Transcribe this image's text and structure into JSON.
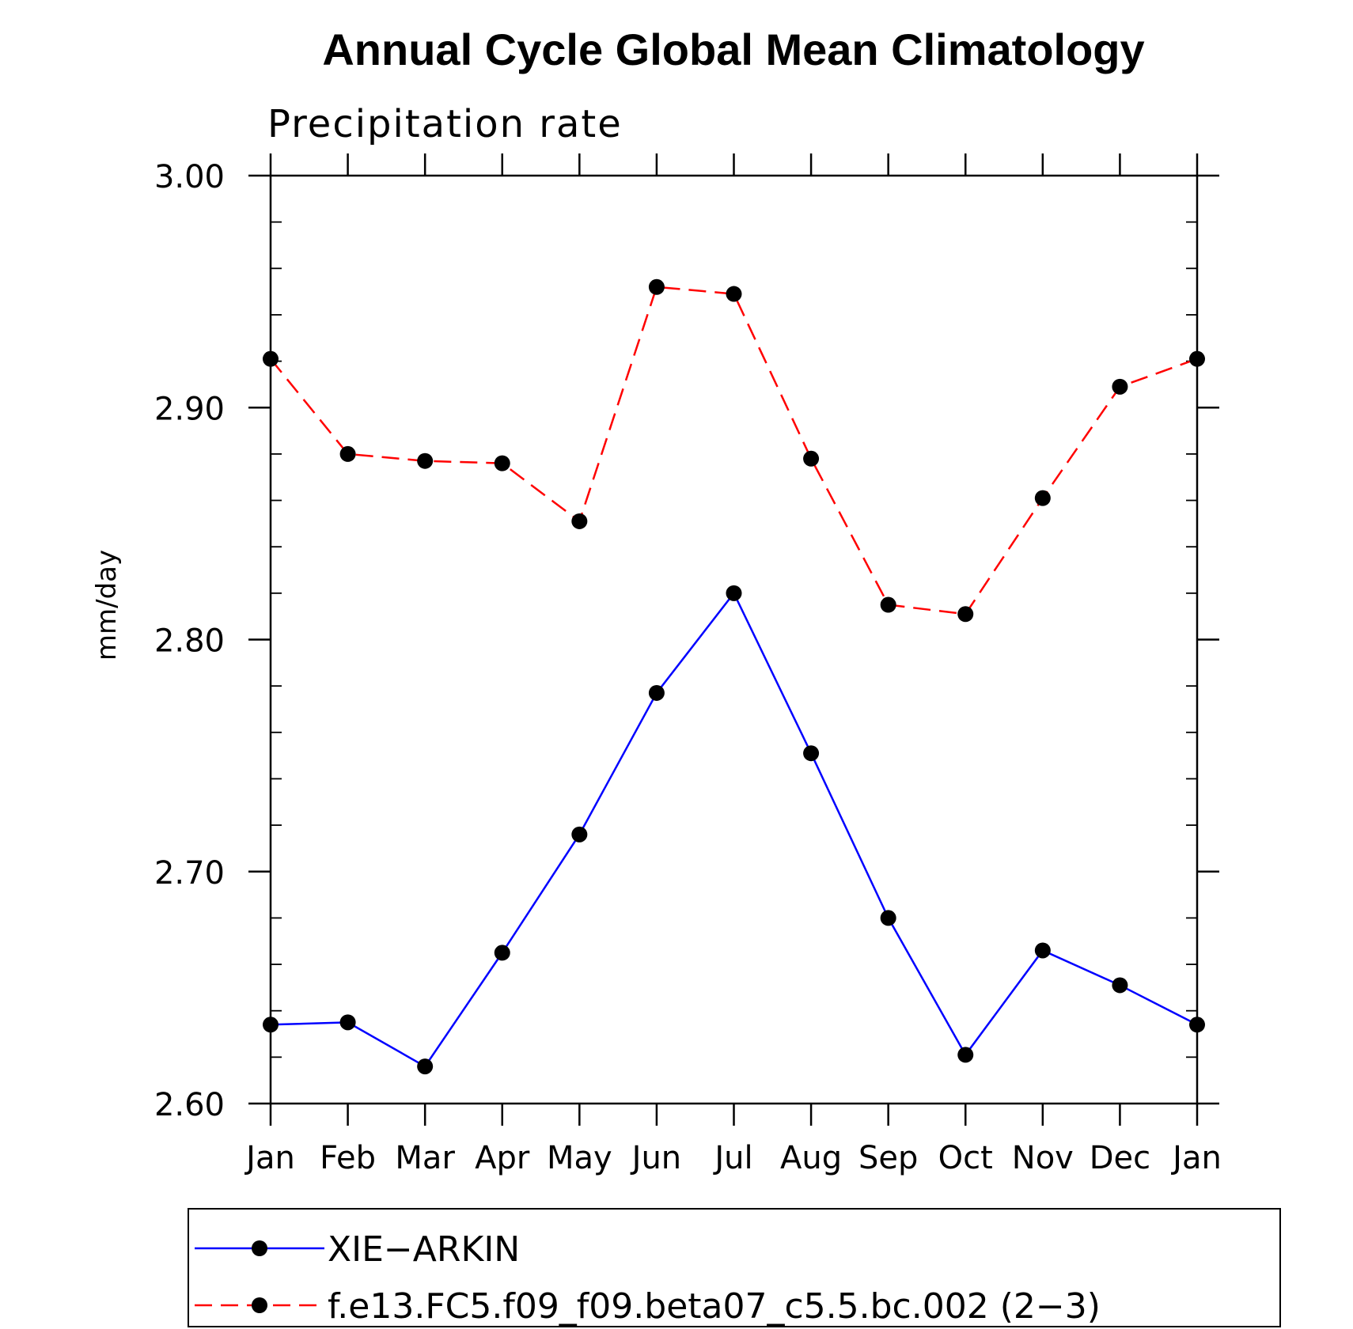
{
  "chart_data": {
    "type": "line",
    "title": "Annual Cycle Global Mean Climatology",
    "subtitle": "Precipitation rate",
    "xlabel": "",
    "ylabel": "mm/day",
    "categories": [
      "Jan",
      "Feb",
      "Mar",
      "Apr",
      "May",
      "Jun",
      "Jul",
      "Aug",
      "Sep",
      "Oct",
      "Nov",
      "Dec",
      "Jan"
    ],
    "ylim": [
      2.6,
      3.0
    ],
    "yticks": [
      "2.60",
      "2.70",
      "2.80",
      "2.90",
      "3.00"
    ],
    "y_minor_step": 0.02,
    "grid": false,
    "legend_position": "bottom",
    "series": [
      {
        "name": "XIE−ARKIN",
        "color": "#0000ff",
        "line_style": "solid",
        "marker": "filled-circle",
        "values": [
          2.634,
          2.635,
          2.616,
          2.665,
          2.716,
          2.777,
          2.82,
          2.751,
          2.68,
          2.621,
          2.666,
          2.651,
          2.634
        ]
      },
      {
        "name": "f.e13.FC5.f09_f09.beta07_c5.5.bc.002 (2−3)",
        "color": "#ff0000",
        "line_style": "dashed",
        "marker": "filled-circle",
        "values": [
          2.921,
          2.88,
          2.877,
          2.876,
          2.851,
          2.952,
          2.949,
          2.878,
          2.815,
          2.811,
          2.861,
          2.909,
          2.921
        ]
      }
    ]
  }
}
